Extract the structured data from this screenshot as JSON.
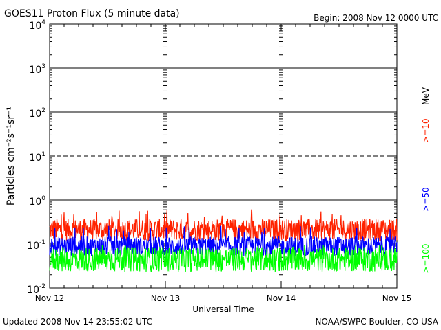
{
  "chart_data": {
    "type": "line",
    "title": "GOES11 Proton Flux (5 minute data)",
    "begin_label": "Begin: 2008 Nov 12 0000 UTC",
    "xlabel": "Universal Time",
    "ylabel": "Particles cm⁻²s⁻¹sr⁻¹",
    "updated_label": "Updated 2008 Nov 14 23:55:02 UTC",
    "credit_label": "NOAA/SWPC Boulder, CO USA",
    "unit_label": "MeV",
    "y_scale": "log",
    "ylim": [
      0.01,
      10000
    ],
    "y_ticks": [
      {
        "base": "10",
        "exp": "-2",
        "value": 0.01
      },
      {
        "base": "10",
        "exp": "-1",
        "value": 0.1
      },
      {
        "base": "10",
        "exp": "0",
        "value": 1
      },
      {
        "base": "10",
        "exp": "1",
        "value": 10
      },
      {
        "base": "10",
        "exp": "2",
        "value": 100
      },
      {
        "base": "10",
        "exp": "3",
        "value": 1000
      },
      {
        "base": "10",
        "exp": "4",
        "value": 10000
      }
    ],
    "x_ticks": [
      "Nov 12",
      "Nov 13",
      "Nov 14",
      "Nov 15"
    ],
    "xlim_days": [
      0,
      3
    ],
    "reference_lines": [
      {
        "value": 1,
        "style": "solid"
      },
      {
        "value": 10,
        "style": "dashed"
      },
      {
        "value": 100,
        "style": "solid"
      },
      {
        "value": 1000,
        "style": "solid"
      }
    ],
    "series": [
      {
        "name": ">=10",
        "color": "#ff2200",
        "baseline": 0.2,
        "spread": 0.25,
        "peak": 0.6
      },
      {
        "name": ">=50",
        "color": "#0000ff",
        "baseline": 0.085,
        "spread": 0.22,
        "peak": 0.26
      },
      {
        "name": ">=100",
        "color": "#00ff00",
        "baseline": 0.042,
        "spread": 0.28,
        "peak": 0.095
      }
    ]
  }
}
